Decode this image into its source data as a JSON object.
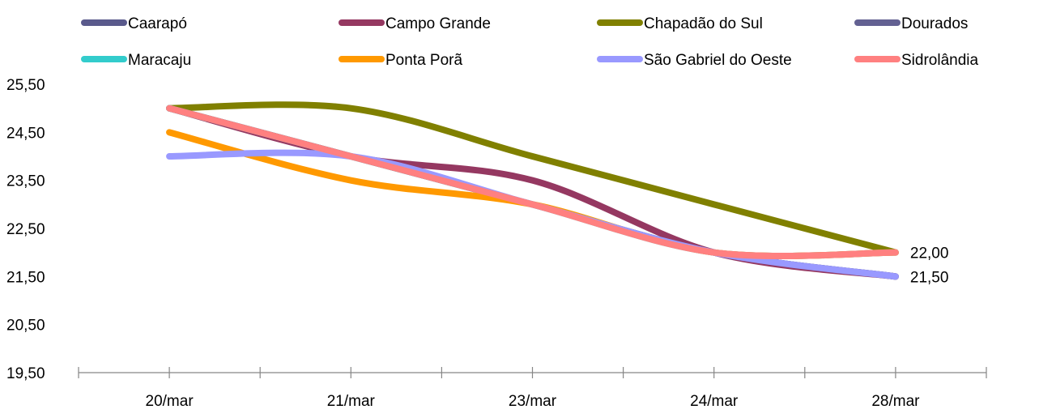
{
  "chart_data": {
    "type": "line",
    "categories": [
      "20/mar",
      "21/mar",
      "23/mar",
      "24/mar",
      "28/mar"
    ],
    "ylim": [
      19.5,
      25.5
    ],
    "yticks": [
      "19,50",
      "20,50",
      "21,50",
      "22,50",
      "23,50",
      "24,50",
      "25,50"
    ],
    "grid": false,
    "legend": "top",
    "series": [
      {
        "name": "Caarapó",
        "color": "#5a5a8c",
        "values": [
          25.0,
          24.0,
          23.0,
          22.0,
          21.5
        ]
      },
      {
        "name": "Campo Grande",
        "color": "#953861",
        "values": [
          25.0,
          24.0,
          23.5,
          22.0,
          21.5
        ]
      },
      {
        "name": "Chapadão do Sul",
        "color": "#808000",
        "values": [
          25.0,
          25.0,
          24.0,
          23.0,
          22.0
        ]
      },
      {
        "name": "Dourados",
        "color": "#636192",
        "values": [
          25.0,
          24.0,
          23.0,
          22.0,
          21.5
        ]
      },
      {
        "name": "Maracaju",
        "color": "#33cccc",
        "values": [
          25.0,
          24.0,
          23.0,
          22.0,
          22.0
        ]
      },
      {
        "name": "Ponta Porã",
        "color": "#ff9900",
        "values": [
          24.5,
          23.5,
          23.0,
          22.0,
          22.0
        ]
      },
      {
        "name": "São Gabriel do Oeste",
        "color": "#9999ff",
        "values": [
          24.0,
          24.0,
          23.0,
          22.0,
          21.5
        ]
      },
      {
        "name": "Sidrolândia",
        "color": "#ff8080",
        "values": [
          25.0,
          24.0,
          23.0,
          22.0,
          22.0
        ]
      }
    ],
    "end_labels": [
      "22,00",
      "21,50"
    ]
  }
}
